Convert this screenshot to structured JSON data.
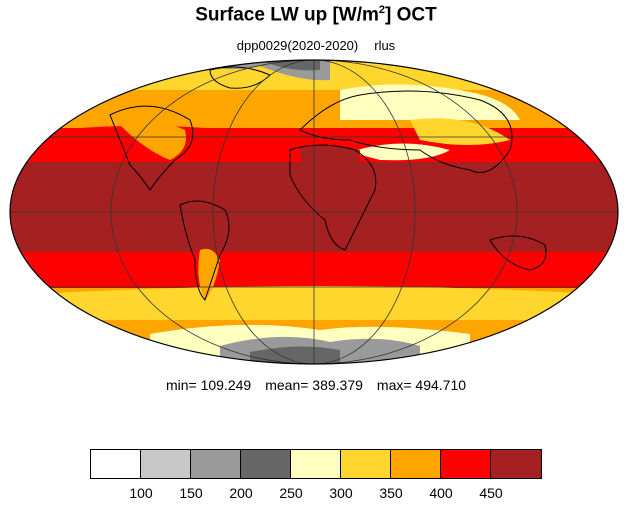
{
  "title": {
    "main": "Surface LW up [W/m",
    "sup": "2",
    "tail": "]  OCT"
  },
  "subtitle": {
    "run": "dpp0029(2020-2020)",
    "variable": "rlus"
  },
  "stats": {
    "min_label": "min=",
    "min": "109.249",
    "mean_label": "mean=",
    "mean": "389.379",
    "max_label": "max=",
    "max": "494.710"
  },
  "colorbar": {
    "colors": [
      "#ffffff",
      "#c8c8c8",
      "#9a9a9a",
      "#666666",
      "#ffffc0",
      "#ffd62e",
      "#ffa500",
      "#ff0000",
      "#a52020"
    ],
    "labels": [
      "100",
      "150",
      "200",
      "250",
      "300",
      "350",
      "400",
      "450"
    ]
  },
  "colors": {
    "ocean_land_outline": "#000000",
    "grid": "#333333",
    "band_450_plus": "#a52020",
    "band_400_450": "#ff0000",
    "band_350_400": "#ffa500",
    "band_300_350": "#ffd62e",
    "band_250_300": "#ffffc0",
    "band_200_250": "#666666",
    "band_150_200": "#9a9a9a",
    "band_100_150": "#c8c8c8"
  },
  "map": {
    "projection": "Mollweide",
    "type": "filled contour"
  }
}
